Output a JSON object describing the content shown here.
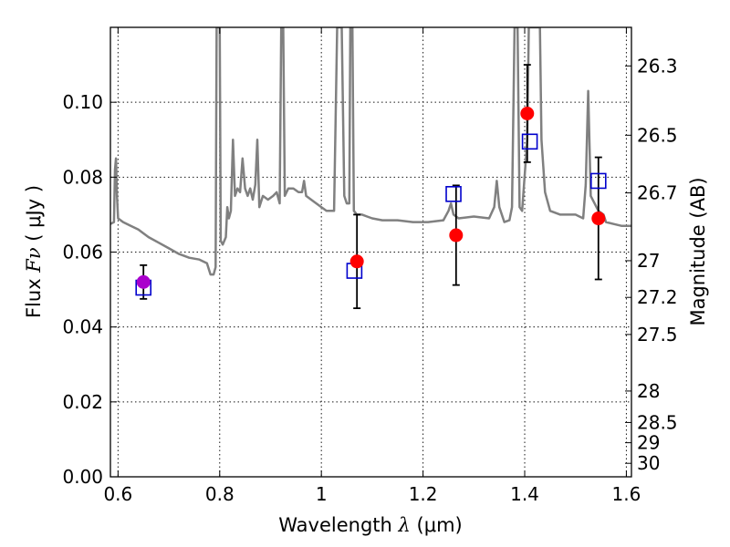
{
  "chart_data": {
    "type": "scatter",
    "title": "",
    "xlabel": {
      "prefix": "Wavelength ",
      "symbol": "λ",
      "open": " (",
      "unit": "μm",
      "close": ")"
    },
    "ylabel": {
      "prefix": "Flux  ",
      "symbol": "Fν",
      "open": " ( ",
      "unit": "μJy",
      "close": " )"
    },
    "y2label": "Magnitude (AB)",
    "xlim": [
      0.585,
      1.61
    ],
    "ylim": [
      0.0,
      0.12
    ],
    "grid": true,
    "x_ticks": [
      {
        "value": 0.6,
        "label": "0.6"
      },
      {
        "value": 0.8,
        "label": "0.8"
      },
      {
        "value": 1.0,
        "label": "1"
      },
      {
        "value": 1.2,
        "label": "1.2"
      },
      {
        "value": 1.4,
        "label": "1.4"
      },
      {
        "value": 1.6,
        "label": "1.6"
      }
    ],
    "y_ticks": [
      {
        "value": 0.0,
        "label": "0.00"
      },
      {
        "value": 0.02,
        "label": "0.02"
      },
      {
        "value": 0.04,
        "label": "0.04"
      },
      {
        "value": 0.06,
        "label": "0.06"
      },
      {
        "value": 0.08,
        "label": "0.08"
      },
      {
        "value": 0.1,
        "label": "0.10"
      }
    ],
    "y2_ticks": [
      {
        "flux": 0.1097,
        "label": "26.3"
      },
      {
        "flux": 0.0912,
        "label": "26.5"
      },
      {
        "flux": 0.0758,
        "label": "26.7"
      },
      {
        "flux": 0.0577,
        "label": "27"
      },
      {
        "flux": 0.0479,
        "label": "27.2"
      },
      {
        "flux": 0.038,
        "label": "27.5"
      },
      {
        "flux": 0.0229,
        "label": "28"
      },
      {
        "flux": 0.0145,
        "label": "28.5"
      },
      {
        "flux": 0.0091,
        "label": "29"
      },
      {
        "flux": 0.0036,
        "label": "30"
      }
    ],
    "colors": {
      "model": "#808080",
      "observed": "#ff0000",
      "model_points": "#0000cc",
      "error": "#000000",
      "blended": "#aa00cc"
    },
    "series": [
      {
        "kind": "model-spectrum",
        "points": [
          [
            0.585,
            0.0675
          ],
          [
            0.592,
            0.068
          ],
          [
            0.594,
            0.082
          ],
          [
            0.596,
            0.085
          ],
          [
            0.598,
            0.075
          ],
          [
            0.6,
            0.069
          ],
          [
            0.61,
            0.068
          ],
          [
            0.625,
            0.067
          ],
          [
            0.64,
            0.066
          ],
          [
            0.66,
            0.064
          ],
          [
            0.68,
            0.0625
          ],
          [
            0.7,
            0.061
          ],
          [
            0.72,
            0.0595
          ],
          [
            0.74,
            0.0585
          ],
          [
            0.76,
            0.058
          ],
          [
            0.775,
            0.057
          ],
          [
            0.782,
            0.054
          ],
          [
            0.788,
            0.054
          ],
          [
            0.792,
            0.056
          ],
          [
            0.794,
            0.12
          ],
          [
            0.8,
            0.12
          ],
          [
            0.802,
            0.063
          ],
          [
            0.806,
            0.062
          ],
          [
            0.812,
            0.064
          ],
          [
            0.815,
            0.072
          ],
          [
            0.818,
            0.069
          ],
          [
            0.822,
            0.071
          ],
          [
            0.826,
            0.09
          ],
          [
            0.83,
            0.075
          ],
          [
            0.835,
            0.077
          ],
          [
            0.84,
            0.076
          ],
          [
            0.845,
            0.085
          ],
          [
            0.85,
            0.077
          ],
          [
            0.855,
            0.075
          ],
          [
            0.86,
            0.077
          ],
          [
            0.865,
            0.074
          ],
          [
            0.87,
            0.078
          ],
          [
            0.874,
            0.09
          ],
          [
            0.878,
            0.072
          ],
          [
            0.885,
            0.075
          ],
          [
            0.895,
            0.074
          ],
          [
            0.905,
            0.075
          ],
          [
            0.912,
            0.076
          ],
          [
            0.918,
            0.073
          ],
          [
            0.921,
            0.12
          ],
          [
            0.925,
            0.12
          ],
          [
            0.928,
            0.075
          ],
          [
            0.935,
            0.077
          ],
          [
            0.945,
            0.077
          ],
          [
            0.955,
            0.076
          ],
          [
            0.962,
            0.076
          ],
          [
            0.966,
            0.079
          ],
          [
            0.97,
            0.075
          ],
          [
            0.98,
            0.074
          ],
          [
            0.99,
            0.073
          ],
          [
            1.0,
            0.072
          ],
          [
            1.01,
            0.071
          ],
          [
            1.025,
            0.071
          ],
          [
            1.031,
            0.12
          ],
          [
            1.04,
            0.12
          ],
          [
            1.045,
            0.075
          ],
          [
            1.05,
            0.073
          ],
          [
            1.055,
            0.073
          ],
          [
            1.057,
            0.12
          ],
          [
            1.061,
            0.12
          ],
          [
            1.064,
            0.071
          ],
          [
            1.07,
            0.07
          ],
          [
            1.08,
            0.07
          ],
          [
            1.09,
            0.0695
          ],
          [
            1.1,
            0.069
          ],
          [
            1.12,
            0.0685
          ],
          [
            1.15,
            0.0685
          ],
          [
            1.18,
            0.068
          ],
          [
            1.21,
            0.068
          ],
          [
            1.24,
            0.0685
          ],
          [
            1.25,
            0.071
          ],
          [
            1.255,
            0.073
          ],
          [
            1.26,
            0.07
          ],
          [
            1.27,
            0.069
          ],
          [
            1.3,
            0.0695
          ],
          [
            1.33,
            0.069
          ],
          [
            1.34,
            0.072
          ],
          [
            1.345,
            0.079
          ],
          [
            1.35,
            0.072
          ],
          [
            1.36,
            0.068
          ],
          [
            1.37,
            0.0685
          ],
          [
            1.375,
            0.072
          ],
          [
            1.38,
            0.12
          ],
          [
            1.386,
            0.12
          ],
          [
            1.39,
            0.072
          ],
          [
            1.395,
            0.071
          ],
          [
            1.405,
            0.09
          ],
          [
            1.408,
            0.12
          ],
          [
            1.43,
            0.12
          ],
          [
            1.433,
            0.09
          ],
          [
            1.44,
            0.076
          ],
          [
            1.45,
            0.071
          ],
          [
            1.47,
            0.07
          ],
          [
            1.5,
            0.07
          ],
          [
            1.515,
            0.069
          ],
          [
            1.52,
            0.078
          ],
          [
            1.525,
            0.103
          ],
          [
            1.53,
            0.075
          ],
          [
            1.545,
            0.071
          ],
          [
            1.555,
            0.07
          ],
          [
            1.56,
            0.068
          ],
          [
            1.575,
            0.0675
          ],
          [
            1.59,
            0.067
          ],
          [
            1.61,
            0.067
          ]
        ]
      }
    ],
    "model_points": [
      {
        "x": 0.65,
        "y": 0.0505
      },
      {
        "x": 1.065,
        "y": 0.055
      },
      {
        "x": 1.26,
        "y": 0.0755
      },
      {
        "x": 1.41,
        "y": 0.0895
      },
      {
        "x": 1.545,
        "y": 0.079
      }
    ],
    "observed_points": [
      {
        "x": 0.65,
        "y": 0.052,
        "yerr": 0.0045,
        "marker": "blended"
      },
      {
        "x": 1.07,
        "y": 0.0575,
        "yerr": 0.0125
      },
      {
        "x": 1.265,
        "y": 0.0645,
        "yerr": 0.0133
      },
      {
        "x": 1.405,
        "y": 0.097,
        "yerr": 0.013
      },
      {
        "x": 1.545,
        "y": 0.069,
        "yerr": 0.0163
      }
    ]
  }
}
